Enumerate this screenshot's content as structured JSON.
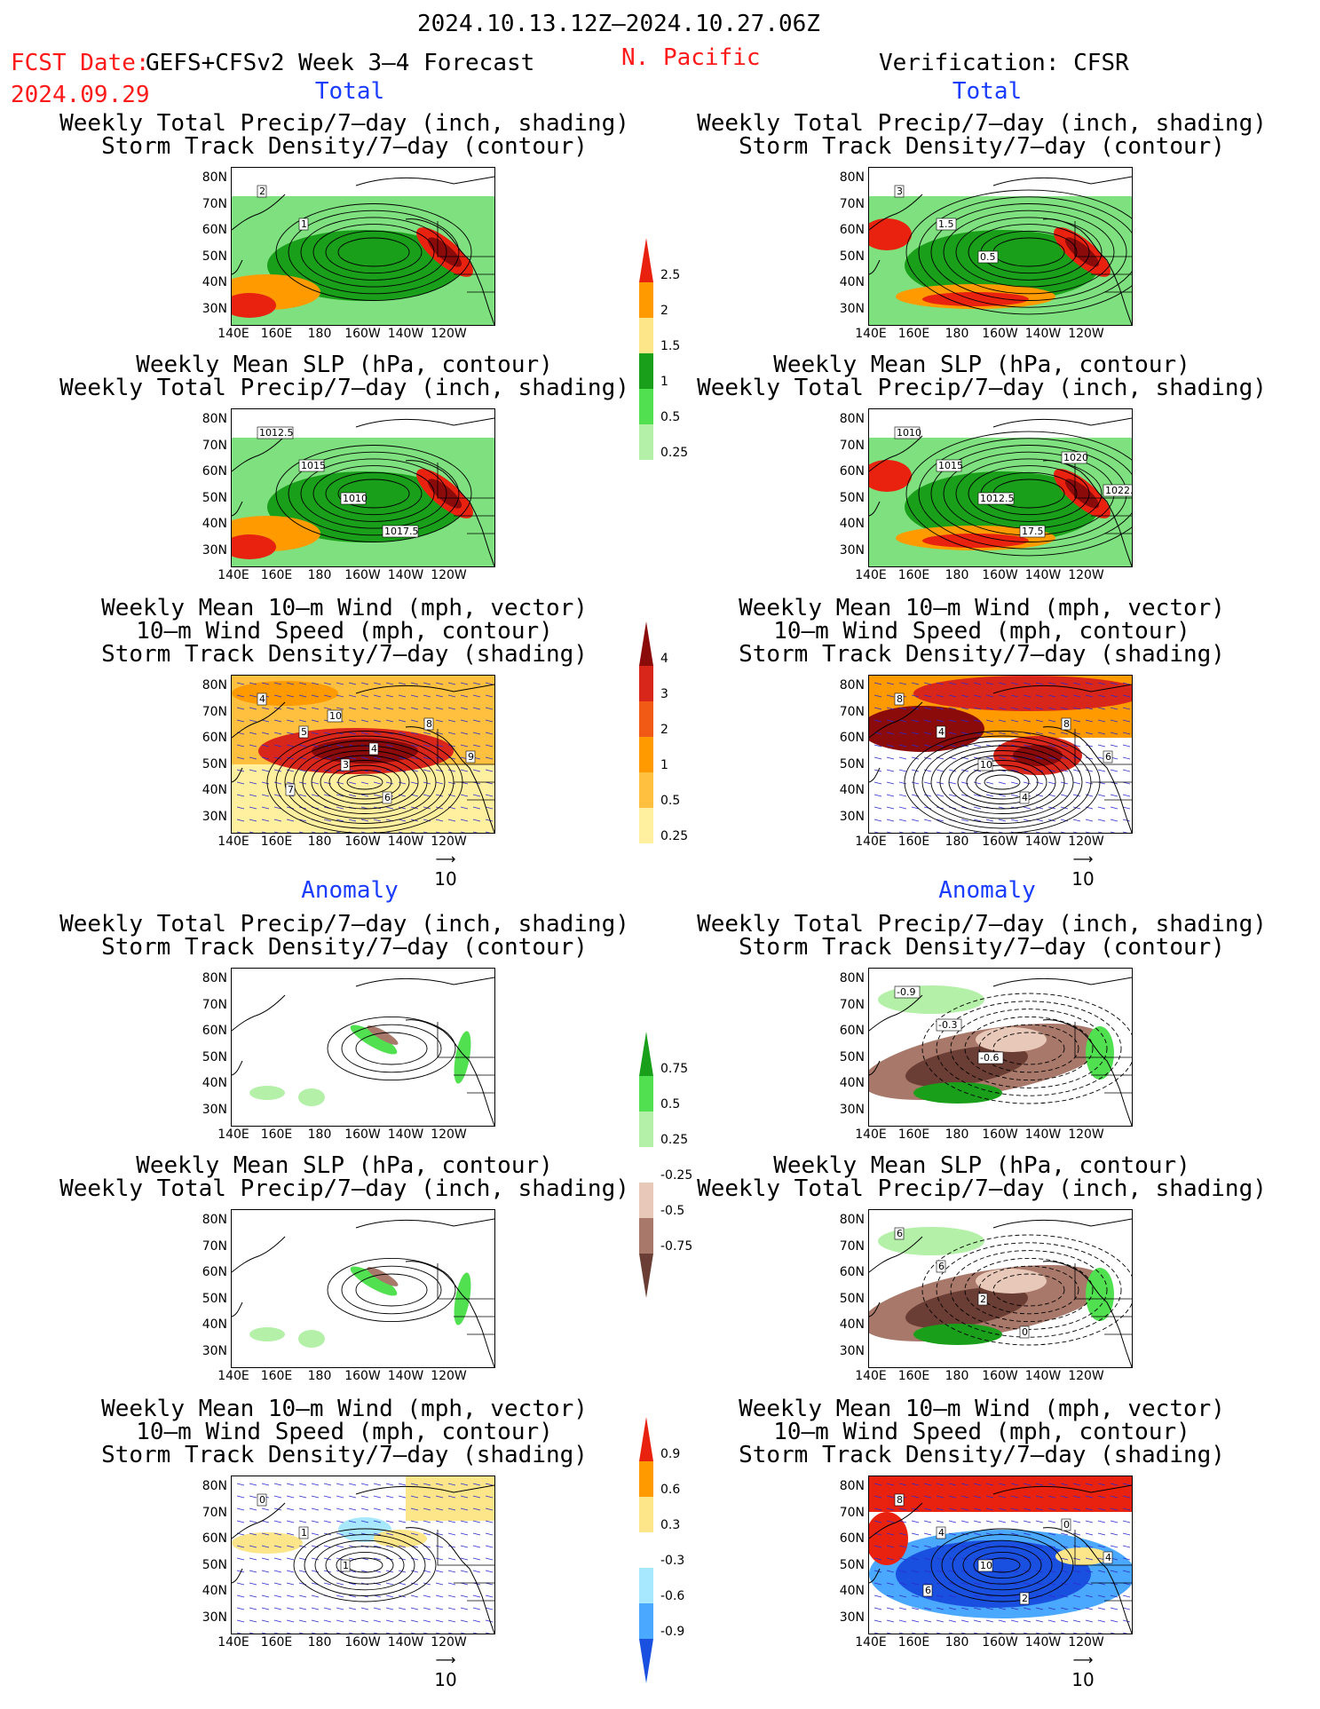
{
  "header": {
    "period": "2024.10.13.12Z–2024.10.27.06Z",
    "fcst_date_label": "FCST Date:",
    "model": "GEFS+CFSv2 Week 3–4 Forecast",
    "fcst_date": "2024.09.29",
    "region": "N. Pacific",
    "verification": "Verification: CFSR"
  },
  "sections": {
    "total": "Total",
    "anomaly": "Anomaly"
  },
  "titles": {
    "precip_track": [
      "Weekly Total Precip/7–day (inch, shading)",
      "Storm Track Density/7–day (contour)"
    ],
    "slp_precip": [
      "Weekly Mean SLP (hPa, contour)",
      "Weekly Total Precip/7–day (inch, shading)"
    ],
    "wind_track": [
      "Weekly Mean 10–m Wind (mph, vector)",
      "10–m Wind Speed (mph, contour)",
      "Storm Track Density/7–day (shading)"
    ]
  },
  "axes": {
    "lat": [
      "80N",
      "70N",
      "60N",
      "50N",
      "40N",
      "30N"
    ],
    "lon": [
      "140E",
      "160E",
      "180",
      "160W",
      "140W",
      "120W"
    ]
  },
  "vector_ref": "10",
  "colorbars": {
    "precip_total": {
      "labels": [
        "2.5",
        "2",
        "1.5",
        "1",
        "0.5",
        "0.25"
      ],
      "colors": [
        "#e8220f",
        "#ff9a00",
        "#fde68a",
        "#1a9f1a",
        "#50e050",
        "#b4f0a8"
      ]
    },
    "track_total": {
      "labels": [
        "4",
        "3",
        "2",
        "1",
        "0.5",
        "0.25"
      ],
      "colors": [
        "#8b0a0a",
        "#d9261a",
        "#f05a14",
        "#ff9a00",
        "#ffc040",
        "#fff0a0"
      ]
    },
    "precip_anom": {
      "labels": [
        "0.75",
        "0.5",
        "0.25",
        "-0.25",
        "-0.5",
        "-0.75"
      ],
      "colors": [
        "#1a9f1a",
        "#50e050",
        "#b4f0a8",
        "#ffffff",
        "#e8c8b8",
        "#a8786a",
        "#6a3e34"
      ]
    },
    "track_anom": {
      "labels": [
        "0.9",
        "0.6",
        "0.3",
        "-0.3",
        "-0.6",
        "-0.9"
      ],
      "colors": [
        "#e8220f",
        "#ff9a00",
        "#fde68a",
        "#ffffff",
        "#a8e8ff",
        "#4aa8ff",
        "#1a50e0"
      ]
    }
  },
  "contour_labels": {
    "fc_precip_track": [
      "2",
      "1"
    ],
    "fc_slp": [
      "1012.5",
      "1015",
      "1010",
      "1017.5"
    ],
    "fc_wind": [
      "4",
      "5",
      "3",
      "6",
      "8",
      "9",
      "7",
      "10",
      "4"
    ],
    "ob_precip_track": [
      "3",
      "1.5",
      "0.5"
    ],
    "ob_slp": [
      "1010",
      "1015",
      "1012.5",
      "17.5",
      "1020",
      "1022.5"
    ],
    "ob_wind": [
      "8",
      "4",
      "10",
      "4",
      "8",
      "6"
    ],
    "ob_precip_track_anom": [
      "-0.9",
      "-0.3",
      "-0.6"
    ],
    "ob_slp_anom": [
      "6",
      "6",
      "2",
      "0"
    ],
    "fc_wind_anom": [
      "0",
      "1",
      "1"
    ],
    "ob_wind_anom": [
      "8",
      "4",
      "10",
      "2",
      "0",
      "4",
      "6"
    ]
  }
}
